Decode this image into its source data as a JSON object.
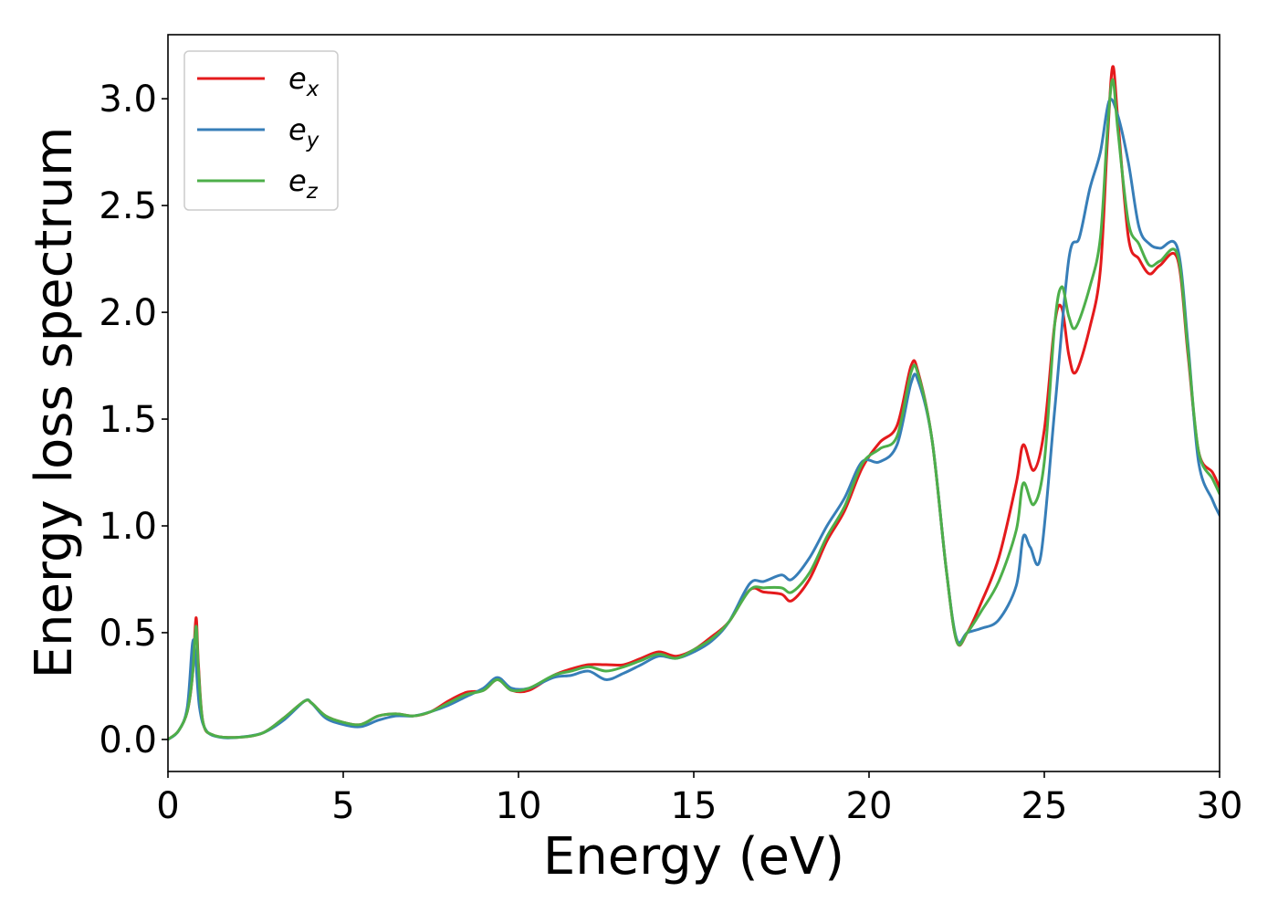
{
  "chart_data": {
    "type": "line",
    "xlabel": "Energy (eV)",
    "ylabel": "Energy loss spectrum",
    "xlim": [
      0,
      30
    ],
    "ylim": [
      -0.15,
      3.3
    ],
    "xticks": [
      0,
      5,
      10,
      15,
      20,
      25,
      30
    ],
    "yticks": [
      0.0,
      0.5,
      1.0,
      1.5,
      2.0,
      2.5,
      3.0
    ],
    "xtick_labels": [
      "0",
      "5",
      "10",
      "15",
      "20",
      "25",
      "30"
    ],
    "ytick_labels": [
      "0.0",
      "0.5",
      "1.0",
      "1.5",
      "2.0",
      "2.5",
      "3.0"
    ],
    "grid": false,
    "legend_position": "top-left",
    "series": [
      {
        "name": "e",
        "subscript": "x",
        "color": "#e41a1c",
        "points": [
          [
            0,
            0
          ],
          [
            0.3,
            0.04
          ],
          [
            0.55,
            0.13
          ],
          [
            0.7,
            0.3
          ],
          [
            0.8,
            0.57
          ],
          [
            0.87,
            0.35
          ],
          [
            1.0,
            0.08
          ],
          [
            1.3,
            0.02
          ],
          [
            2.0,
            0.01
          ],
          [
            2.7,
            0.03
          ],
          [
            3.3,
            0.1
          ],
          [
            3.9,
            0.18
          ],
          [
            4.1,
            0.17
          ],
          [
            4.5,
            0.11
          ],
          [
            5.0,
            0.08
          ],
          [
            5.5,
            0.07
          ],
          [
            6.0,
            0.11
          ],
          [
            6.5,
            0.12
          ],
          [
            7.0,
            0.11
          ],
          [
            7.5,
            0.13
          ],
          [
            8.0,
            0.18
          ],
          [
            8.5,
            0.22
          ],
          [
            9.0,
            0.23
          ],
          [
            9.4,
            0.28
          ],
          [
            9.8,
            0.23
          ],
          [
            10.3,
            0.23
          ],
          [
            11.0,
            0.3
          ],
          [
            11.5,
            0.33
          ],
          [
            12.0,
            0.35
          ],
          [
            12.5,
            0.35
          ],
          [
            13.0,
            0.35
          ],
          [
            13.5,
            0.38
          ],
          [
            14.0,
            0.41
          ],
          [
            14.5,
            0.39
          ],
          [
            15.0,
            0.42
          ],
          [
            15.5,
            0.48
          ],
          [
            16.0,
            0.55
          ],
          [
            16.6,
            0.7
          ],
          [
            17.0,
            0.69
          ],
          [
            17.5,
            0.68
          ],
          [
            17.8,
            0.65
          ],
          [
            18.3,
            0.75
          ],
          [
            18.8,
            0.93
          ],
          [
            19.3,
            1.07
          ],
          [
            19.8,
            1.27
          ],
          [
            20.3,
            1.39
          ],
          [
            20.8,
            1.47
          ],
          [
            21.2,
            1.75
          ],
          [
            21.4,
            1.72
          ],
          [
            21.8,
            1.4
          ],
          [
            22.2,
            0.8
          ],
          [
            22.5,
            0.46
          ],
          [
            22.8,
            0.5
          ],
          [
            23.2,
            0.64
          ],
          [
            23.7,
            0.85
          ],
          [
            24.2,
            1.2
          ],
          [
            24.4,
            1.38
          ],
          [
            24.7,
            1.26
          ],
          [
            25.0,
            1.45
          ],
          [
            25.3,
            1.95
          ],
          [
            25.5,
            2.02
          ],
          [
            25.7,
            1.8
          ],
          [
            25.9,
            1.72
          ],
          [
            26.3,
            1.93
          ],
          [
            26.6,
            2.2
          ],
          [
            26.8,
            2.8
          ],
          [
            26.95,
            3.15
          ],
          [
            27.1,
            2.9
          ],
          [
            27.4,
            2.35
          ],
          [
            27.7,
            2.25
          ],
          [
            28.0,
            2.18
          ],
          [
            28.3,
            2.22
          ],
          [
            28.8,
            2.25
          ],
          [
            29.1,
            1.8
          ],
          [
            29.4,
            1.35
          ],
          [
            29.8,
            1.25
          ],
          [
            30.0,
            1.18
          ]
        ]
      },
      {
        "name": "e",
        "subscript": "y",
        "color": "#377eb8",
        "points": [
          [
            0,
            0
          ],
          [
            0.3,
            0.04
          ],
          [
            0.55,
            0.15
          ],
          [
            0.7,
            0.45
          ],
          [
            0.78,
            0.4
          ],
          [
            0.9,
            0.15
          ],
          [
            1.1,
            0.04
          ],
          [
            1.5,
            0.01
          ],
          [
            2.0,
            0.01
          ],
          [
            2.7,
            0.03
          ],
          [
            3.3,
            0.09
          ],
          [
            3.9,
            0.18
          ],
          [
            4.1,
            0.17
          ],
          [
            4.5,
            0.1
          ],
          [
            5.0,
            0.07
          ],
          [
            5.5,
            0.06
          ],
          [
            6.0,
            0.09
          ],
          [
            6.5,
            0.11
          ],
          [
            7.0,
            0.11
          ],
          [
            7.5,
            0.13
          ],
          [
            8.0,
            0.16
          ],
          [
            8.5,
            0.2
          ],
          [
            9.0,
            0.24
          ],
          [
            9.4,
            0.29
          ],
          [
            9.8,
            0.24
          ],
          [
            10.3,
            0.24
          ],
          [
            11.0,
            0.29
          ],
          [
            11.5,
            0.3
          ],
          [
            12.0,
            0.32
          ],
          [
            12.5,
            0.28
          ],
          [
            13.0,
            0.31
          ],
          [
            13.5,
            0.35
          ],
          [
            14.0,
            0.39
          ],
          [
            14.5,
            0.38
          ],
          [
            15.0,
            0.41
          ],
          [
            15.5,
            0.46
          ],
          [
            16.0,
            0.55
          ],
          [
            16.6,
            0.73
          ],
          [
            17.0,
            0.74
          ],
          [
            17.5,
            0.77
          ],
          [
            17.8,
            0.75
          ],
          [
            18.3,
            0.85
          ],
          [
            18.8,
            1.0
          ],
          [
            19.3,
            1.13
          ],
          [
            19.8,
            1.3
          ],
          [
            20.3,
            1.3
          ],
          [
            20.8,
            1.38
          ],
          [
            21.2,
            1.67
          ],
          [
            21.4,
            1.68
          ],
          [
            21.8,
            1.4
          ],
          [
            22.2,
            0.8
          ],
          [
            22.5,
            0.47
          ],
          [
            22.8,
            0.5
          ],
          [
            23.2,
            0.52
          ],
          [
            23.7,
            0.56
          ],
          [
            24.2,
            0.72
          ],
          [
            24.4,
            0.95
          ],
          [
            24.6,
            0.9
          ],
          [
            24.9,
            0.86
          ],
          [
            25.3,
            1.55
          ],
          [
            25.7,
            2.25
          ],
          [
            26.0,
            2.35
          ],
          [
            26.3,
            2.58
          ],
          [
            26.6,
            2.75
          ],
          [
            26.85,
            2.99
          ],
          [
            27.1,
            2.92
          ],
          [
            27.4,
            2.7
          ],
          [
            27.7,
            2.4
          ],
          [
            28.0,
            2.32
          ],
          [
            28.3,
            2.3
          ],
          [
            28.8,
            2.3
          ],
          [
            29.1,
            1.85
          ],
          [
            29.4,
            1.3
          ],
          [
            29.8,
            1.12
          ],
          [
            30.0,
            1.05
          ]
        ]
      },
      {
        "name": "e",
        "subscript": "z",
        "color": "#4daf4a",
        "points": [
          [
            0,
            0
          ],
          [
            0.3,
            0.04
          ],
          [
            0.55,
            0.13
          ],
          [
            0.7,
            0.3
          ],
          [
            0.8,
            0.53
          ],
          [
            0.87,
            0.33
          ],
          [
            1.0,
            0.08
          ],
          [
            1.3,
            0.02
          ],
          [
            2.0,
            0.01
          ],
          [
            2.7,
            0.03
          ],
          [
            3.3,
            0.1
          ],
          [
            3.9,
            0.18
          ],
          [
            4.1,
            0.17
          ],
          [
            4.5,
            0.11
          ],
          [
            5.0,
            0.08
          ],
          [
            5.5,
            0.07
          ],
          [
            6.0,
            0.11
          ],
          [
            6.5,
            0.12
          ],
          [
            7.0,
            0.11
          ],
          [
            7.5,
            0.13
          ],
          [
            8.0,
            0.17
          ],
          [
            8.5,
            0.21
          ],
          [
            9.0,
            0.23
          ],
          [
            9.4,
            0.28
          ],
          [
            9.8,
            0.23
          ],
          [
            10.3,
            0.24
          ],
          [
            11.0,
            0.3
          ],
          [
            11.5,
            0.32
          ],
          [
            12.0,
            0.34
          ],
          [
            12.5,
            0.32
          ],
          [
            13.0,
            0.34
          ],
          [
            13.5,
            0.37
          ],
          [
            14.0,
            0.4
          ],
          [
            14.5,
            0.38
          ],
          [
            15.0,
            0.42
          ],
          [
            15.5,
            0.47
          ],
          [
            16.0,
            0.55
          ],
          [
            16.6,
            0.7
          ],
          [
            17.0,
            0.71
          ],
          [
            17.5,
            0.71
          ],
          [
            17.8,
            0.69
          ],
          [
            18.3,
            0.78
          ],
          [
            18.8,
            0.95
          ],
          [
            19.3,
            1.09
          ],
          [
            19.8,
            1.29
          ],
          [
            20.3,
            1.36
          ],
          [
            20.8,
            1.42
          ],
          [
            21.2,
            1.72
          ],
          [
            21.4,
            1.71
          ],
          [
            21.8,
            1.4
          ],
          [
            22.2,
            0.8
          ],
          [
            22.5,
            0.46
          ],
          [
            22.8,
            0.5
          ],
          [
            23.2,
            0.6
          ],
          [
            23.7,
            0.74
          ],
          [
            24.2,
            0.98
          ],
          [
            24.4,
            1.2
          ],
          [
            24.7,
            1.1
          ],
          [
            25.0,
            1.3
          ],
          [
            25.3,
            1.95
          ],
          [
            25.5,
            2.12
          ],
          [
            25.7,
            1.98
          ],
          [
            25.9,
            1.93
          ],
          [
            26.3,
            2.12
          ],
          [
            26.6,
            2.35
          ],
          [
            26.8,
            2.85
          ],
          [
            26.95,
            3.09
          ],
          [
            27.1,
            2.85
          ],
          [
            27.4,
            2.42
          ],
          [
            27.7,
            2.32
          ],
          [
            28.0,
            2.22
          ],
          [
            28.3,
            2.24
          ],
          [
            28.8,
            2.27
          ],
          [
            29.1,
            1.82
          ],
          [
            29.4,
            1.35
          ],
          [
            29.8,
            1.22
          ],
          [
            30.0,
            1.15
          ]
        ]
      }
    ]
  }
}
